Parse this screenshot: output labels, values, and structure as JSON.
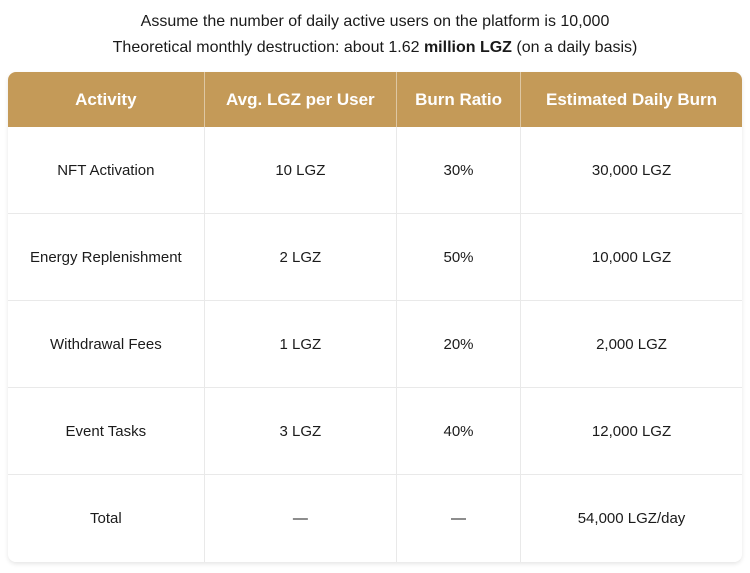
{
  "intro": {
    "line1": "Assume the number of daily active users on the platform is 10,000",
    "line2_prefix": "Theoretical monthly destruction: about 1.62 ",
    "line2_bold": "million LGZ",
    "line2_suffix": " (on a daily basis)"
  },
  "table": {
    "columns": [
      "Activity",
      "Avg. LGZ per User",
      "Burn Ratio",
      "Estimated Daily Burn"
    ],
    "rows": [
      {
        "activity": "NFT Activation",
        "avg_lgz": "10 LGZ",
        "burn_ratio": "30%",
        "daily_burn": "30,000 LGZ"
      },
      {
        "activity": "Energy Replenishment",
        "avg_lgz": "2 LGZ",
        "burn_ratio": "50%",
        "daily_burn": "10,000 LGZ"
      },
      {
        "activity": "Withdrawal Fees",
        "avg_lgz": "1 LGZ",
        "burn_ratio": "20%",
        "daily_burn": "2,000 LGZ"
      },
      {
        "activity": "Event Tasks",
        "avg_lgz": "3 LGZ",
        "burn_ratio": "40%",
        "daily_burn": "12,000 LGZ"
      },
      {
        "activity": "Total",
        "avg_lgz": "—",
        "burn_ratio": "—",
        "daily_burn": "54,000 LGZ/day"
      }
    ]
  },
  "colors": {
    "header_bg": "#c49a58",
    "header_text": "#ffffff",
    "body_text": "#1b1b1b",
    "divider": "#e9e9e9"
  }
}
